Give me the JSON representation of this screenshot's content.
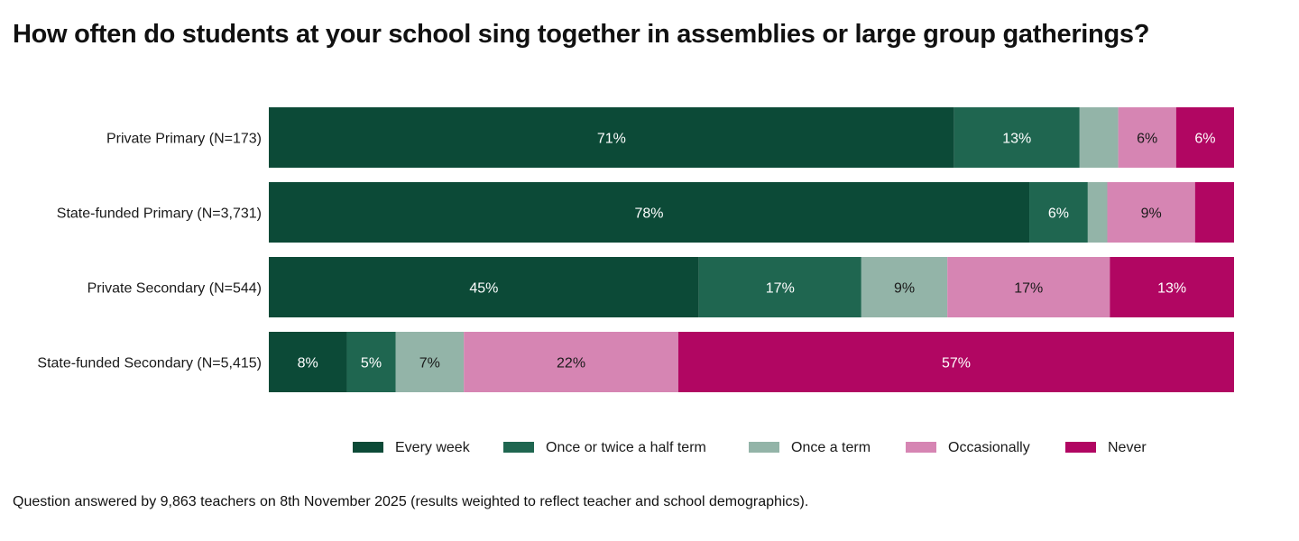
{
  "title": "How often do students at your school sing together in assemblies or large group gatherings?",
  "footnote": "Question answered by 9,863 teachers on 8th November 2025 (results weighted to reflect teacher and school demographics).",
  "chart_data": {
    "type": "bar",
    "orientation": "horizontal",
    "stacked": true,
    "normalized": true,
    "title": "How often do students at your school sing together in assemblies or large group gatherings?",
    "xlabel": "",
    "ylabel": "",
    "xlim": [
      0,
      100
    ],
    "grid": false,
    "legend_position": "bottom",
    "categories": [
      "Private Primary (N=173)",
      "State-funded Primary (N=3,731)",
      "Private Secondary (N=544)",
      "State-funded Secondary (N=5,415)"
    ],
    "series": [
      {
        "name": "Every week",
        "color": "#0c4a37",
        "label_color": "#ffffff",
        "values": [
          71,
          78,
          45,
          8
        ],
        "labels": [
          "71%",
          "78%",
          "45%",
          "8%"
        ]
      },
      {
        "name": "Once or twice a half term",
        "color": "#1f6650",
        "label_color": "#ffffff",
        "values": [
          13,
          6,
          17,
          5
        ],
        "labels": [
          "13%",
          "6%",
          "17%",
          "5%"
        ]
      },
      {
        "name": "Once a term",
        "color": "#93b4a8",
        "label_color": "#1a1a1a",
        "values": [
          4,
          2,
          9,
          7
        ],
        "labels": [
          "",
          "",
          "9%",
          "7%"
        ]
      },
      {
        "name": "Occasionally",
        "color": "#d685b3",
        "label_color": "#1a1a1a",
        "values": [
          6,
          9,
          17,
          22
        ],
        "labels": [
          "6%",
          "9%",
          "17%",
          "22%"
        ]
      },
      {
        "name": "Never",
        "color": "#b10662",
        "label_color": "#ffffff",
        "values": [
          6,
          4,
          13,
          57
        ],
        "labels": [
          "6%",
          "",
          "13%",
          "57%"
        ]
      }
    ]
  }
}
